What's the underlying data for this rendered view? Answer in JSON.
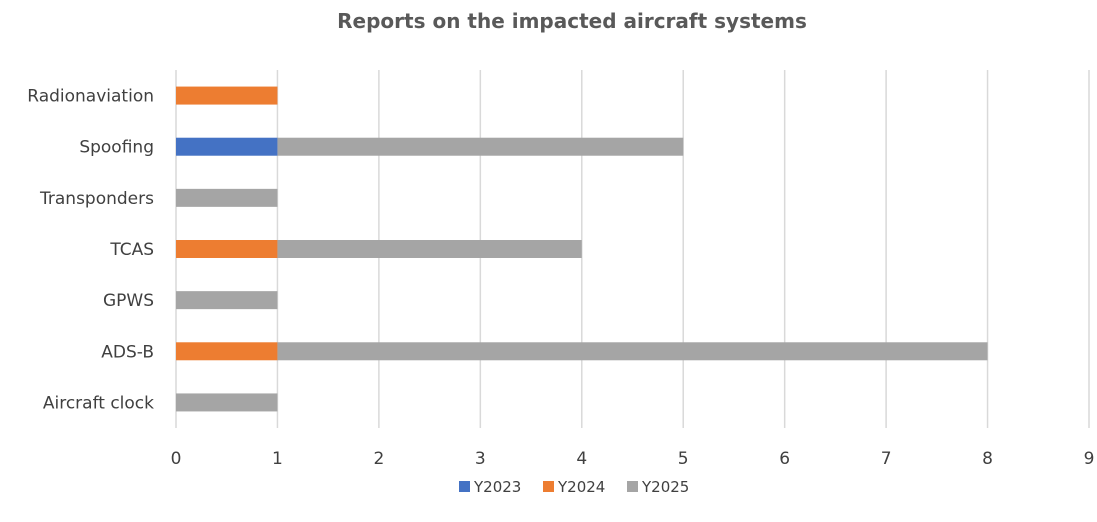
{
  "chart_data": {
    "type": "bar",
    "orientation": "horizontal",
    "stacked": true,
    "title": "Reports on the impacted aircraft systems",
    "categories": [
      "Radionaviation",
      "Spoofing",
      "Transponders",
      "TCAS",
      "GPWS",
      "ADS-B",
      "Aircraft clock"
    ],
    "series": [
      {
        "name": "Y2023",
        "color": "#4472c4",
        "values": [
          0,
          1,
          0,
          0,
          0,
          0,
          0
        ]
      },
      {
        "name": "Y2024",
        "color": "#ed7d31",
        "values": [
          1,
          0,
          0,
          1,
          0,
          1,
          0
        ]
      },
      {
        "name": "Y2025",
        "color": "#a5a5a5",
        "values": [
          0,
          4,
          1,
          3,
          1,
          7,
          1
        ]
      }
    ],
    "xlim": [
      0,
      9
    ],
    "xticks": [
      "0",
      "1",
      "2",
      "3",
      "4",
      "5",
      "6",
      "7",
      "8",
      "9"
    ],
    "grid": true,
    "legend_position": "bottom"
  }
}
